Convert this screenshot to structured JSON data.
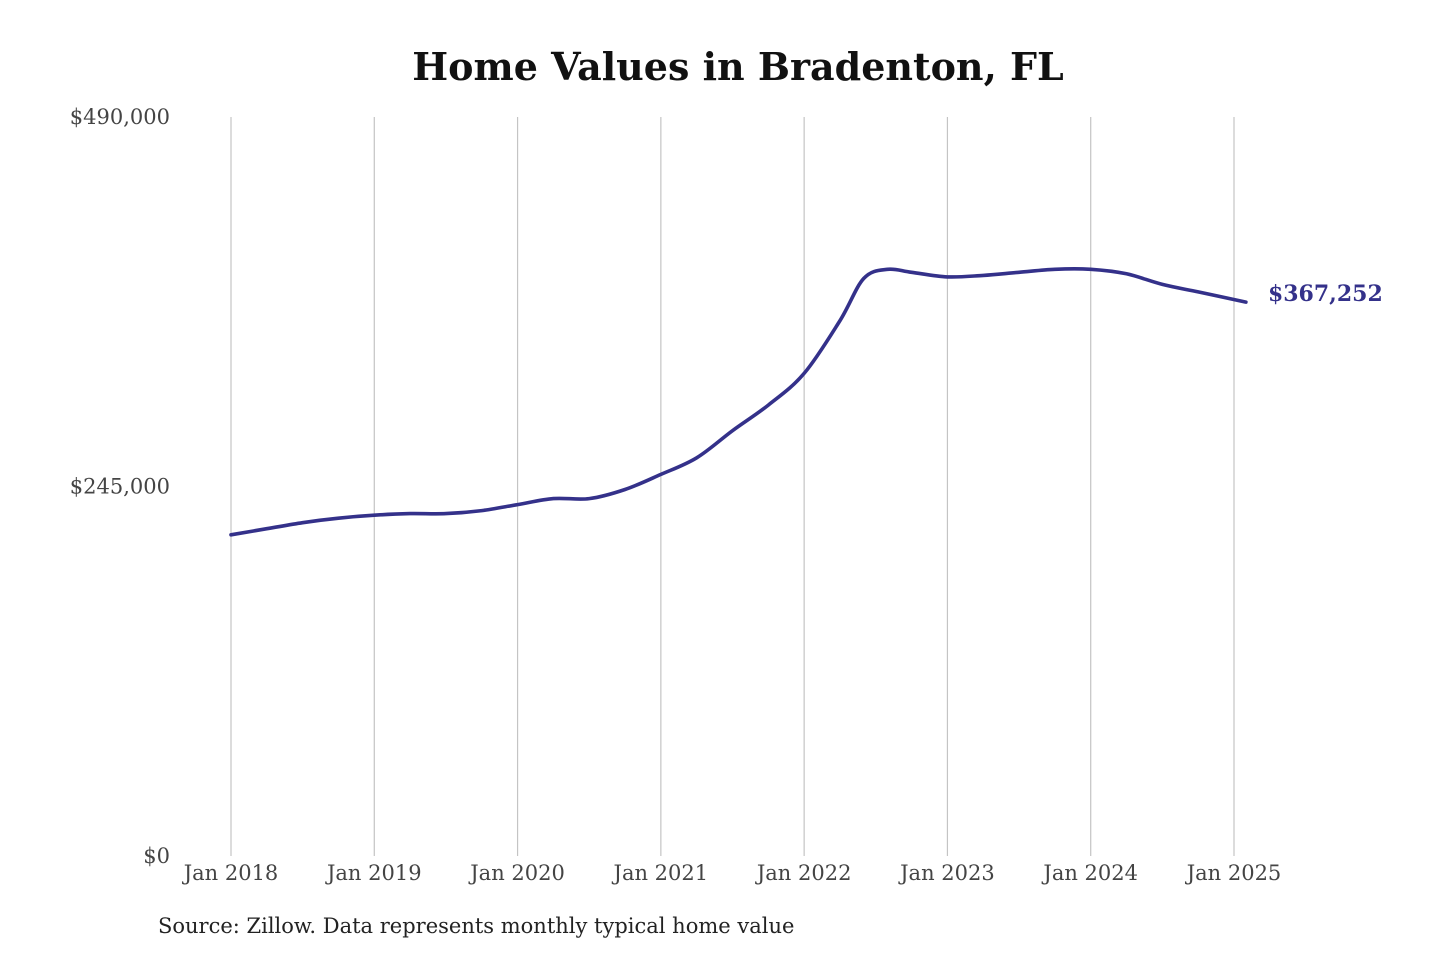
{
  "chart_data": {
    "type": "line",
    "title": "Home Values in Bradenton, FL",
    "xlabel": "",
    "ylabel": "",
    "source": "Source: Zillow. Data represents monthly typical home value",
    "ylim": [
      0,
      490000
    ],
    "y_ticks": [
      {
        "value": 0,
        "label": "$0"
      },
      {
        "value": 245000,
        "label": "$245,000"
      },
      {
        "value": 490000,
        "label": "$490,000"
      }
    ],
    "x_ticks": [
      {
        "value": "2018-01",
        "label": "Jan 2018"
      },
      {
        "value": "2019-01",
        "label": "Jan 2019"
      },
      {
        "value": "2020-01",
        "label": "Jan 2020"
      },
      {
        "value": "2021-01",
        "label": "Jan 2021"
      },
      {
        "value": "2022-01",
        "label": "Jan 2022"
      },
      {
        "value": "2023-01",
        "label": "Jan 2023"
      },
      {
        "value": "2024-01",
        "label": "Jan 2024"
      },
      {
        "value": "2025-01",
        "label": "Jan 2025"
      }
    ],
    "grid": {
      "vertical": true,
      "horizontal": false
    },
    "series_color": "#34318a",
    "end_label": "$367,252",
    "series": [
      {
        "values": [
          {
            "x": "2018-01",
            "y": 213000
          },
          {
            "x": "2018-04",
            "y": 217000
          },
          {
            "x": "2018-07",
            "y": 221000
          },
          {
            "x": "2018-10",
            "y": 224000
          },
          {
            "x": "2019-01",
            "y": 226000
          },
          {
            "x": "2019-04",
            "y": 227000
          },
          {
            "x": "2019-07",
            "y": 227000
          },
          {
            "x": "2019-10",
            "y": 229000
          },
          {
            "x": "2020-01",
            "y": 233000
          },
          {
            "x": "2020-04",
            "y": 237000
          },
          {
            "x": "2020-07",
            "y": 237000
          },
          {
            "x": "2020-10",
            "y": 243000
          },
          {
            "x": "2021-01",
            "y": 253000
          },
          {
            "x": "2021-04",
            "y": 264000
          },
          {
            "x": "2021-07",
            "y": 282000
          },
          {
            "x": "2021-10",
            "y": 299000
          },
          {
            "x": "2022-01",
            "y": 320000
          },
          {
            "x": "2022-04",
            "y": 355000
          },
          {
            "x": "2022-06",
            "y": 383000
          },
          {
            "x": "2022-08",
            "y": 389000
          },
          {
            "x": "2022-10",
            "y": 387000
          },
          {
            "x": "2023-01",
            "y": 384000
          },
          {
            "x": "2023-04",
            "y": 385000
          },
          {
            "x": "2023-07",
            "y": 387000
          },
          {
            "x": "2023-10",
            "y": 389000
          },
          {
            "x": "2024-01",
            "y": 389000
          },
          {
            "x": "2024-04",
            "y": 386000
          },
          {
            "x": "2024-07",
            "y": 379000
          },
          {
            "x": "2024-10",
            "y": 374000
          },
          {
            "x": "2025-02",
            "y": 367252
          }
        ]
      }
    ]
  }
}
